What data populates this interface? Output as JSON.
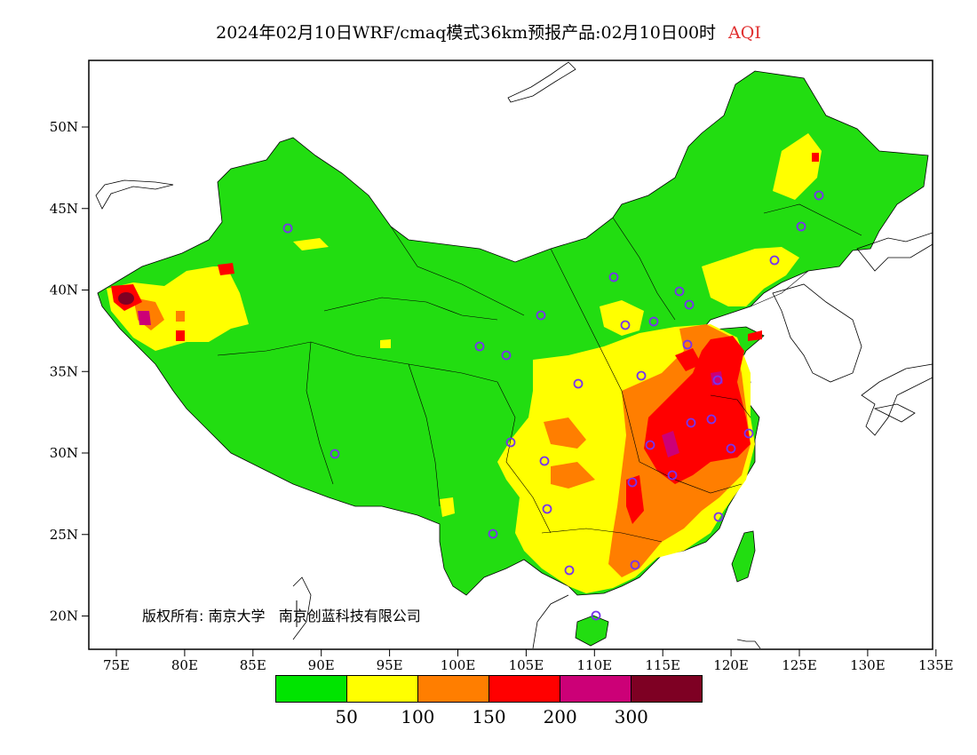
{
  "title": {
    "main": "2024年02月10日WRF/cmaq模式36km预报产品:02月10日00时",
    "variable": "AQI",
    "variable_color": "#e03030"
  },
  "axes": {
    "lat_labels": [
      "50N",
      "45N",
      "40N",
      "35N",
      "30N",
      "25N",
      "20N"
    ],
    "lon_labels": [
      "75E",
      "80E",
      "85E",
      "90E",
      "95E",
      "100E",
      "105E",
      "110E",
      "115E",
      "120E",
      "125E",
      "130E",
      "135E"
    ],
    "lat_range": [
      18,
      54
    ],
    "lon_range": [
      73,
      135
    ]
  },
  "credit": {
    "owner_prefix": "版权所有:",
    "org1": "南京大学",
    "org2": "南京创蓝科技有限公司"
  },
  "legend": {
    "colors": [
      "#00e400",
      "#ffff00",
      "#ff7e00",
      "#ff0000",
      "#cc0077",
      "#7e0023"
    ],
    "ticks": [
      "50",
      "100",
      "150",
      "200",
      "300"
    ]
  },
  "colors": {
    "good": "#33dd11",
    "moderate": "#ffff00",
    "usg": "#ff7e00",
    "unhealthy": "#ff0000",
    "very_unhealthy": "#cc0077",
    "hazardous": "#7e0023",
    "station_marker": "#7733ee"
  }
}
